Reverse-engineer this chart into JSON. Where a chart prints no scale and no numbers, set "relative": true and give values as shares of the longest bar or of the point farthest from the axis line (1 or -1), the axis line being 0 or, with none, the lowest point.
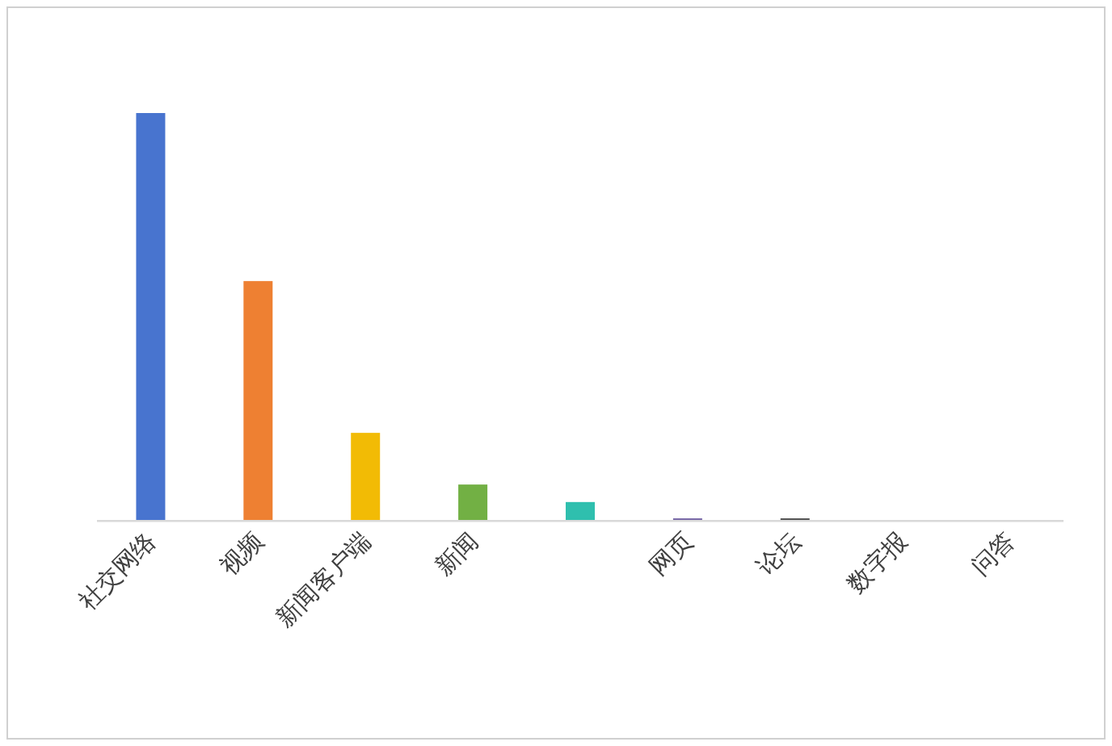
{
  "chart_data": {
    "type": "bar",
    "relative": true,
    "categories": [
      "社交网络",
      "视频",
      "新闻客户端",
      "新闻",
      null,
      "网页",
      "论坛",
      "数字报",
      "问答"
    ],
    "values": [
      1,
      0.587,
      0.214,
      0.087,
      0.044,
      0.004,
      0.004,
      0,
      0
    ],
    "colors": [
      "#4874cf",
      "#ee8032",
      "#f2bb05",
      "#72b044",
      "#2fbfae",
      "#7a6aa8",
      "#555555",
      "#888888",
      "#888888"
    ]
  }
}
